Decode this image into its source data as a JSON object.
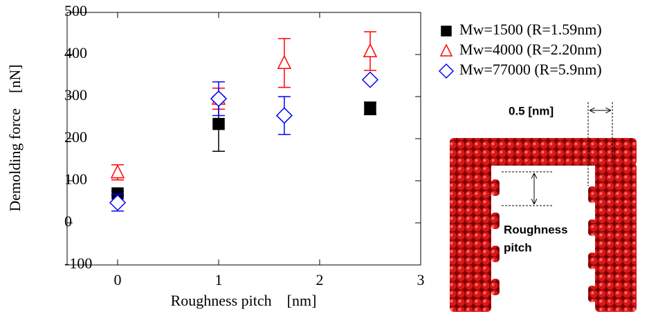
{
  "chart_data": {
    "type": "scatter",
    "x_label": "Roughness pitch    [nm]",
    "y_label": "Demolding force    [nN]",
    "xlim": [
      -0.5,
      3
    ],
    "xticks": [
      0,
      1,
      2,
      3
    ],
    "ylim": [
      -100,
      500
    ],
    "yticks": [
      -100,
      0,
      100,
      200,
      300,
      400,
      500
    ],
    "series": [
      {
        "name": "Mw=1500 (R=1.59nm)",
        "color": "#000000",
        "marker": "square",
        "x": [
          0,
          1,
          2.5
        ],
        "values": [
          70,
          235,
          272
        ],
        "errors": [
          5,
          65,
          15
        ]
      },
      {
        "name": "Mw=4000 (R=2.20nm)",
        "color": "#ff0000",
        "marker": "triangle",
        "x": [
          0,
          1,
          1.65,
          2.5
        ],
        "values": [
          120,
          295,
          380,
          408
        ],
        "errors": [
          18,
          25,
          58,
          46
        ]
      },
      {
        "name": "Mw=77000 (R=5.9nm)",
        "color": "#0000ff",
        "marker": "diamond",
        "x": [
          0,
          1,
          1.65,
          2.5
        ],
        "values": [
          48,
          295,
          255,
          340
        ],
        "errors": [
          20,
          40,
          45,
          0
        ]
      }
    ],
    "annotations": [
      "0.5 [nm]",
      "Roughness",
      "pitch"
    ]
  }
}
